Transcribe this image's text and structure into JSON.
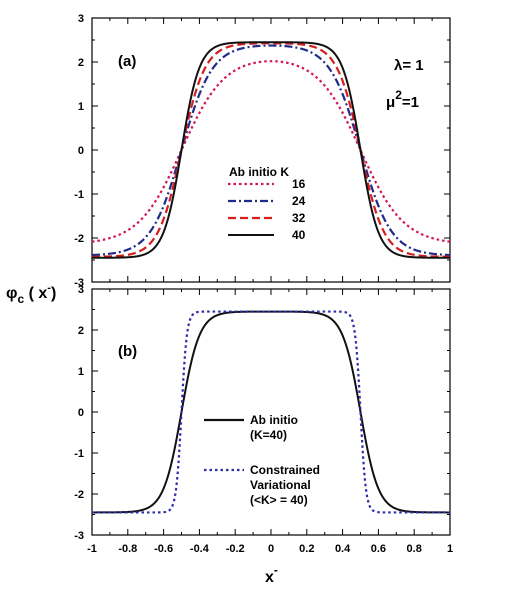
{
  "figure": {
    "ylabel_main": "φ",
    "ylabel_sub": "c",
    "ylabel_rest": " ( x",
    "ylabel_sup": "-",
    "ylabel_close": ")",
    "xlabel_main": "x",
    "xlabel_sup": "-"
  },
  "chart_data": [
    {
      "type": "line",
      "panel_label": "(a)",
      "annotations": [
        "λ= 1",
        "μ",
        "2",
        "=1"
      ],
      "legend_title": "Ab initio K",
      "legend_position": "center-bottom",
      "xlim": [
        -1,
        1
      ],
      "ylim": [
        -3,
        3
      ],
      "x_ticks": [
        "-1",
        "-0.8",
        "-0.6",
        "-0.4",
        "-0.2",
        "0",
        "0.2",
        "0.4",
        "0.6",
        "0.8",
        "1"
      ],
      "y_ticks": [
        "-3",
        "-2",
        "-1",
        "0",
        "1",
        "2",
        "3"
      ],
      "grid": false,
      "series": [
        {
          "name": "16",
          "color": "#d4145a",
          "style": "dotted",
          "amplitude": 2.15,
          "width": 0.24,
          "x": [
            -1,
            -0.8,
            -0.6,
            -0.5,
            -0.4,
            -0.2,
            0,
            0.2,
            0.4,
            0.5,
            0.6,
            0.8,
            1
          ],
          "y": [
            -2.13,
            -1.9,
            -1.1,
            -0.2,
            0.75,
            1.8,
            2.15,
            1.8,
            0.75,
            -0.2,
            -1.1,
            -1.9,
            -2.13
          ]
        },
        {
          "name": "24",
          "color": "#1f2a8c",
          "style": "dashdot",
          "amplitude": 2.4,
          "width": 0.17,
          "x": [
            -1,
            -0.8,
            -0.6,
            -0.5,
            -0.4,
            -0.2,
            0,
            0.2,
            0.4,
            0.5,
            0.6,
            0.8,
            1
          ],
          "y": [
            -2.4,
            -2.15,
            -1.35,
            -0.15,
            1.1,
            2.2,
            2.4,
            2.2,
            1.1,
            -0.15,
            -1.35,
            -2.15,
            -2.4
          ]
        },
        {
          "name": "32",
          "color": "#d31f1f",
          "style": "dashed",
          "amplitude": 2.43,
          "width": 0.13,
          "x": [
            -1,
            -0.8,
            -0.6,
            -0.5,
            -0.4,
            -0.2,
            0,
            0.2,
            0.4,
            0.5,
            0.6,
            0.8,
            1
          ],
          "y": [
            -2.43,
            -2.3,
            -1.5,
            -0.1,
            1.3,
            2.35,
            2.43,
            2.35,
            1.3,
            -0.1,
            -1.5,
            -2.3,
            -2.43
          ]
        },
        {
          "name": "40",
          "color": "#111111",
          "style": "solid",
          "amplitude": 2.45,
          "width": 0.1,
          "x": [
            -1,
            -0.8,
            -0.6,
            -0.5,
            -0.4,
            -0.2,
            0,
            0.2,
            0.4,
            0.5,
            0.6,
            0.8,
            1
          ],
          "y": [
            -2.45,
            -2.4,
            -1.75,
            -0.1,
            1.55,
            2.42,
            2.45,
            2.42,
            1.55,
            -0.1,
            -1.75,
            -2.4,
            -2.45
          ]
        }
      ]
    },
    {
      "type": "line",
      "panel_label": "(b)",
      "xlim": [
        -1,
        1
      ],
      "ylim": [
        -3,
        3
      ],
      "x_ticks": [
        "-1",
        "-0.8",
        "-0.6",
        "-0.4",
        "-0.2",
        "0",
        "0.2",
        "0.4",
        "0.6",
        "0.8",
        "1"
      ],
      "y_ticks": [
        "-3",
        "-2",
        "-1",
        "0",
        "1",
        "2",
        "3"
      ],
      "grid": false,
      "legend_position": "center",
      "series": [
        {
          "name": "Ab initio",
          "name_line2": "(K=40)",
          "color": "#111111",
          "style": "solid",
          "amplitude": 2.45,
          "width": 0.1,
          "x": [
            -1,
            -0.8,
            -0.6,
            -0.5,
            -0.4,
            -0.2,
            0,
            0.2,
            0.4,
            0.5,
            0.6,
            0.8,
            1
          ],
          "y": [
            -2.45,
            -2.4,
            -1.75,
            -0.1,
            1.55,
            2.42,
            2.45,
            2.42,
            1.55,
            -0.1,
            -1.75,
            -2.4,
            -2.45
          ]
        },
        {
          "name": "Constrained",
          "name_line2": "Variational",
          "name_line3": "(<K> = 40)",
          "color": "#2c2ca8",
          "style": "dotted",
          "amplitude": 2.45,
          "width": 0.03,
          "x": [
            -1,
            -0.6,
            -0.55,
            -0.5,
            -0.45,
            -0.4,
            0,
            0.4,
            0.45,
            0.5,
            0.55,
            0.6,
            1
          ],
          "y": [
            -2.45,
            -2.45,
            -2.2,
            0,
            2.2,
            2.45,
            2.45,
            2.45,
            2.2,
            0,
            -2.2,
            -2.45,
            -2.45
          ]
        }
      ]
    }
  ]
}
